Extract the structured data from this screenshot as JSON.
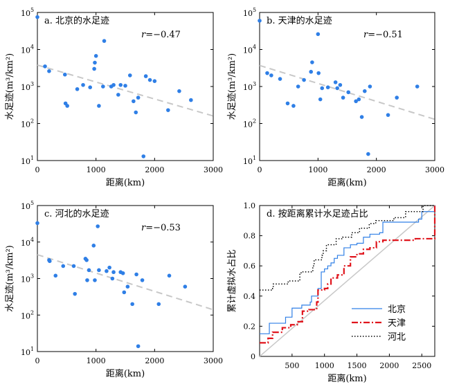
{
  "chart_data": [
    {
      "type": "scatter",
      "title": "a. 北京的水足迹",
      "xlabel": "距离(km)",
      "ylabel": "水足迹(m³/km²)",
      "xlim": [
        0,
        3000
      ],
      "ylim": [
        10,
        100000
      ],
      "yscale": "log",
      "xticks": [
        "0",
        "1000",
        "2000",
        "3000"
      ],
      "yticks": [
        {
          "base": "10",
          "exp": "1"
        },
        {
          "base": "10",
          "exp": "2"
        },
        {
          "base": "10",
          "exp": "3"
        },
        {
          "base": "10",
          "exp": "4"
        },
        {
          "base": "10",
          "exp": "5"
        }
      ],
      "annotation": {
        "var": "r",
        "value": "=−0.47"
      },
      "trend": {
        "x": [
          0,
          3000
        ],
        "y": [
          3800,
          160
        ]
      },
      "x": [
        0,
        130,
        200,
        470,
        480,
        510,
        680,
        780,
        900,
        970,
        980,
        1000,
        1050,
        1120,
        1140,
        1260,
        1300,
        1380,
        1420,
        1500,
        1580,
        1640,
        1680,
        1720,
        1810,
        1850,
        1920,
        2000,
        2230,
        2420,
        2620
      ],
      "y": [
        75000,
        3500,
        2600,
        2100,
        350,
        300,
        850,
        1100,
        950,
        3000,
        4400,
        6700,
        300,
        1000,
        17000,
        1000,
        1100,
        600,
        1100,
        1050,
        2000,
        400,
        200,
        500,
        13,
        1900,
        1500,
        1400,
        230,
        750,
        430
      ],
      "grid": false
    },
    {
      "type": "scatter",
      "title": "b. 天津的水足迹",
      "xlabel": "距离(km)",
      "ylabel": "水足迹(m³/km²)",
      "xlim": [
        0,
        3000
      ],
      "ylim": [
        10,
        100000
      ],
      "yscale": "log",
      "xticks": [
        "0",
        "1000",
        "2000",
        "3000"
      ],
      "yticks": [
        {
          "base": "10",
          "exp": "1"
        },
        {
          "base": "10",
          "exp": "2"
        },
        {
          "base": "10",
          "exp": "3"
        },
        {
          "base": "10",
          "exp": "4"
        },
        {
          "base": "10",
          "exp": "5"
        }
      ],
      "annotation": {
        "var": "r",
        "value": "=−0.51"
      },
      "trend": {
        "x": [
          0,
          3000
        ],
        "y": [
          3700,
          130
        ]
      },
      "x": [
        0,
        130,
        200,
        350,
        480,
        580,
        660,
        760,
        880,
        900,
        1000,
        1010,
        1040,
        1070,
        1170,
        1300,
        1330,
        1380,
        1430,
        1520,
        1650,
        1700,
        1750,
        1800,
        1860,
        1890,
        2200,
        2350,
        2700
      ],
      "y": [
        60000,
        2300,
        2000,
        1600,
        350,
        300,
        1000,
        1500,
        2500,
        4500,
        26000,
        2300,
        450,
        900,
        950,
        1300,
        900,
        1100,
        500,
        700,
        400,
        450,
        150,
        750,
        15,
        1000,
        170,
        500,
        1000
      ],
      "grid": false
    },
    {
      "type": "scatter",
      "title": "c. 河北的水足迹",
      "xlabel": "距离(km)",
      "ylabel": "水足迹(m³/km²)",
      "xlim": [
        0,
        3000
      ],
      "ylim": [
        10,
        100000
      ],
      "yscale": "log",
      "xticks": [
        "0",
        "1000",
        "2000",
        "3000"
      ],
      "yticks": [
        {
          "base": "10",
          "exp": "1"
        },
        {
          "base": "10",
          "exp": "2"
        },
        {
          "base": "10",
          "exp": "3"
        },
        {
          "base": "10",
          "exp": "4"
        },
        {
          "base": "10",
          "exp": "5"
        }
      ],
      "annotation": {
        "var": "r",
        "value": "=−0.53"
      },
      "trend": {
        "x": [
          0,
          3000
        ],
        "y": [
          4500,
          140
        ]
      },
      "x": [
        0,
        200,
        210,
        310,
        440,
        620,
        640,
        820,
        840,
        850,
        880,
        960,
        980,
        1030,
        1050,
        1180,
        1230,
        1280,
        1300,
        1420,
        1460,
        1480,
        1540,
        1620,
        1690,
        1720,
        1790,
        2070,
        2250,
        2520
      ],
      "y": [
        33000,
        3200,
        3000,
        1200,
        2200,
        2200,
        380,
        3500,
        3200,
        900,
        1700,
        8000,
        900,
        27000,
        1700,
        1600,
        2000,
        1000,
        1500,
        1500,
        1400,
        420,
        600,
        200,
        1300,
        14,
        900,
        200,
        1200,
        600
      ],
      "grid": false
    },
    {
      "type": "line",
      "title": "d. 按距离累计水足迹占比",
      "xlabel": "距离(km)",
      "ylabel": "累计虚拟水占比",
      "xlim": [
        0,
        2700
      ],
      "ylim": [
        0,
        1
      ],
      "xticks": [
        "500",
        "1000",
        "1500",
        "2000",
        "2500"
      ],
      "xtick_values": [
        500,
        1000,
        1500,
        2000,
        2500
      ],
      "yticks": [
        "0",
        "0.2",
        "0.4",
        "0.6",
        "0.8",
        "1.0"
      ],
      "ytick_values": [
        0,
        0.2,
        0.4,
        0.6,
        0.8,
        1.0
      ],
      "legend": "bottom-right",
      "reference": {
        "x": [
          0,
          2700
        ],
        "y": [
          0,
          1
        ]
      },
      "series": [
        {
          "name": "北京",
          "x": [
            0,
            130,
            150,
            400,
            480,
            500,
            650,
            780,
            800,
            880,
            900,
            950,
            1000,
            1050,
            1100,
            1150,
            1200,
            1300,
            1400,
            1500,
            1600,
            1700,
            1850,
            1900,
            2450,
            2500,
            2700
          ],
          "y": [
            0.15,
            0.15,
            0.22,
            0.26,
            0.26,
            0.32,
            0.34,
            0.36,
            0.4,
            0.4,
            0.45,
            0.56,
            0.58,
            0.6,
            0.62,
            0.65,
            0.67,
            0.72,
            0.74,
            0.75,
            0.79,
            0.81,
            0.82,
            0.89,
            0.91,
            0.96,
            1.0
          ]
        },
        {
          "name": "天津",
          "x": [
            0,
            100,
            130,
            200,
            350,
            480,
            580,
            660,
            760,
            880,
            900,
            1000,
            1050,
            1100,
            1200,
            1300,
            1400,
            1500,
            1600,
            1700,
            1800,
            1900,
            2400,
            2700
          ],
          "y": [
            0.09,
            0.09,
            0.12,
            0.16,
            0.19,
            0.21,
            0.23,
            0.3,
            0.31,
            0.36,
            0.44,
            0.45,
            0.48,
            0.52,
            0.54,
            0.6,
            0.66,
            0.68,
            0.71,
            0.72,
            0.76,
            0.77,
            0.78,
            1.0
          ]
        },
        {
          "name": "河北",
          "x": [
            0,
            200,
            210,
            440,
            620,
            640,
            820,
            840,
            960,
            980,
            1030,
            1180,
            1280,
            1420,
            1540,
            1690,
            1790,
            2070,
            2250,
            2520,
            2700
          ],
          "y": [
            0.44,
            0.45,
            0.48,
            0.5,
            0.55,
            0.56,
            0.6,
            0.64,
            0.67,
            0.7,
            0.74,
            0.78,
            0.79,
            0.82,
            0.85,
            0.88,
            0.9,
            0.92,
            0.96,
            1.0,
            1.0
          ]
        }
      ],
      "grid": false
    }
  ],
  "colors": {
    "point": "#2f7fe6",
    "trend": "#c8c8c8",
    "reference": "#c8c8c8",
    "series": [
      "#2f7fe6",
      "#e0141c",
      "#000000"
    ]
  }
}
